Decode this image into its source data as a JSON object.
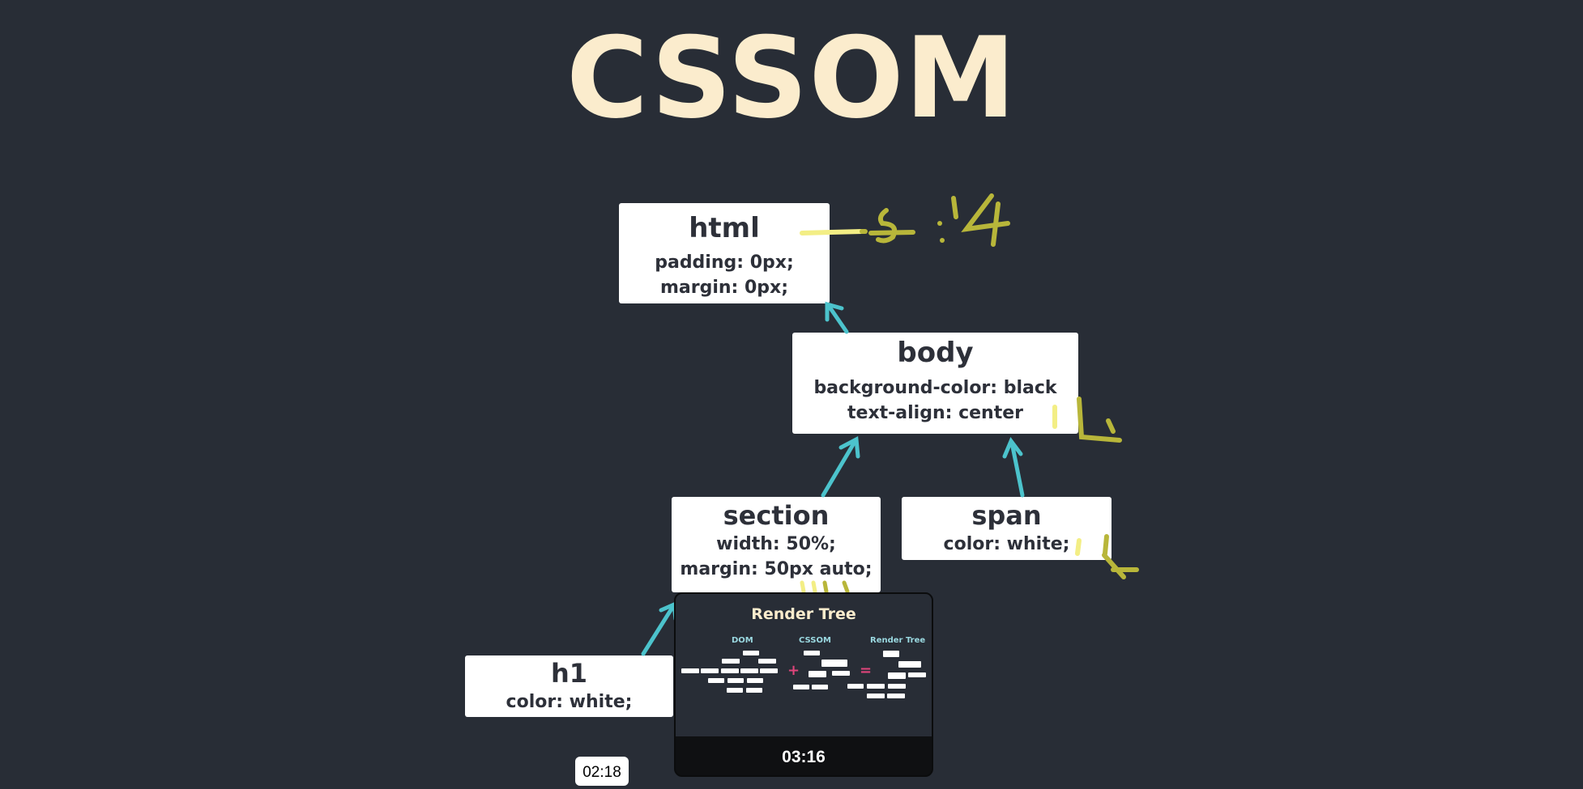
{
  "slide": {
    "title": "CSSOM"
  },
  "nodes": {
    "html": {
      "name": "html",
      "props": [
        "padding: 0px;",
        "margin: 0px;"
      ]
    },
    "body": {
      "name": "body",
      "props": [
        "background-color: black",
        "text-align: center"
      ]
    },
    "section": {
      "name": "section",
      "props": [
        "width: 50%;",
        "margin: 50px auto;"
      ]
    },
    "span": {
      "name": "span",
      "props": [
        "color: white;"
      ]
    },
    "h1": {
      "name": "h1",
      "props": [
        "color: white;"
      ]
    }
  },
  "colors": {
    "arrow": "#4cc3cc",
    "annotation": "#b8b63a",
    "highlight": "#f3ee85",
    "background": "#282d36",
    "title": "#fbeccd"
  },
  "next_slide": {
    "title": "Render Tree",
    "columns": [
      "DOM",
      "CSSOM",
      "Render Tree"
    ],
    "operators": [
      "+",
      "="
    ],
    "duration": "03:16"
  },
  "current_time": "02:18"
}
